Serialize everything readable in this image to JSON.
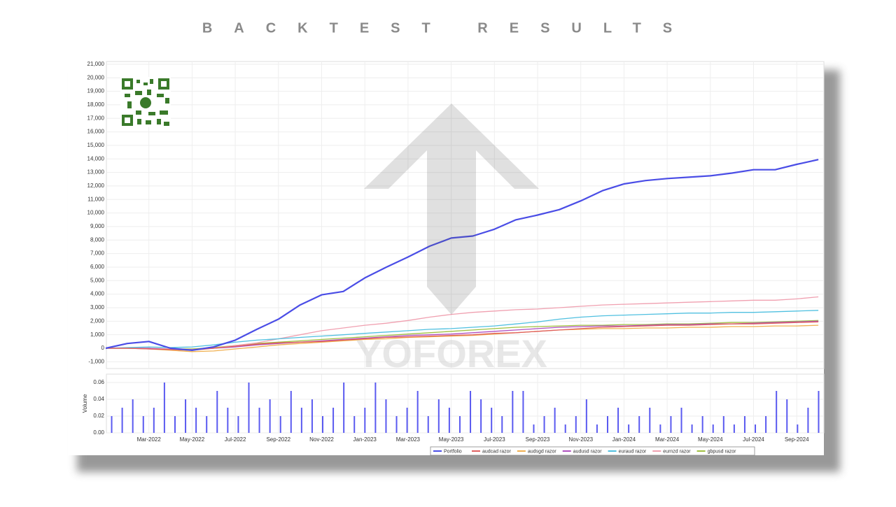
{
  "page_title": "BACKTEST RESULTS",
  "watermark": "YOFOREX",
  "chart_data": [
    {
      "type": "line",
      "categories": [
        null,
        null,
        "Mar-2022",
        null,
        "May-2022",
        null,
        "Jul-2022",
        null,
        "Sep-2022",
        null,
        "Nov-2022",
        null,
        "Jan-2023",
        null,
        "Mar-2023",
        null,
        "May-2023",
        null,
        "Jul-2023",
        null,
        "Sep-2023",
        null,
        "Nov-2023",
        null,
        "Jan-2024",
        null,
        "Mar-2024",
        null,
        "May-2024",
        null,
        "Jul-2024",
        null,
        "Sep-2024",
        null
      ],
      "series": [
        {
          "name": "Portfolio",
          "color": "#4a4de6",
          "values": [
            0,
            350,
            500,
            0,
            -150,
            100,
            600,
            1400,
            2150,
            3200,
            3950,
            4200,
            5200,
            6000,
            6750,
            7550,
            8150,
            8300,
            8800,
            9500,
            9850,
            10250,
            10900,
            11650,
            12150,
            12400,
            12550,
            12650,
            12750,
            12950,
            13200,
            13200,
            13600,
            13950
          ]
        },
        {
          "name": "audcad razor",
          "color": "#e06060",
          "values": [
            0,
            0,
            -50,
            -100,
            -150,
            0,
            150,
            300,
            400,
            450,
            500,
            600,
            700,
            800,
            850,
            900,
            950,
            1000,
            1100,
            1150,
            1250,
            1350,
            1450,
            1550,
            1600,
            1650,
            1700,
            1700,
            1750,
            1800,
            1800,
            1850,
            1900,
            1950
          ]
        },
        {
          "name": "audsgd razor",
          "color": "#f0b050",
          "values": [
            0,
            0,
            -50,
            -150,
            -250,
            -200,
            -50,
            100,
            250,
            350,
            450,
            550,
            650,
            700,
            800,
            850,
            900,
            950,
            1050,
            1150,
            1250,
            1350,
            1400,
            1450,
            1450,
            1500,
            1500,
            1550,
            1550,
            1600,
            1600,
            1650,
            1650,
            1700
          ]
        },
        {
          "name": "audusd razor",
          "color": "#b050c0",
          "values": [
            0,
            0,
            0,
            -100,
            -100,
            0,
            100,
            250,
            350,
            450,
            550,
            650,
            750,
            850,
            950,
            1000,
            1050,
            1150,
            1250,
            1350,
            1450,
            1550,
            1600,
            1650,
            1650,
            1700,
            1750,
            1750,
            1800,
            1800,
            1850,
            1900,
            1950,
            2000
          ]
        },
        {
          "name": "euraud razor",
          "color": "#50c0e0",
          "values": [
            0,
            50,
            100,
            50,
            100,
            250,
            450,
            600,
            700,
            800,
            900,
            1000,
            1100,
            1200,
            1300,
            1400,
            1450,
            1550,
            1650,
            1800,
            1950,
            2150,
            2300,
            2400,
            2450,
            2500,
            2550,
            2600,
            2600,
            2650,
            2650,
            2700,
            2750,
            2800
          ]
        },
        {
          "name": "eurnzd razor",
          "color": "#f0a0b0",
          "values": [
            0,
            0,
            0,
            -50,
            -100,
            0,
            200,
            400,
            700,
            1000,
            1300,
            1500,
            1700,
            1850,
            2050,
            2300,
            2500,
            2650,
            2750,
            2850,
            2900,
            3000,
            3100,
            3200,
            3250,
            3300,
            3350,
            3400,
            3450,
            3500,
            3550,
            3550,
            3650,
            3800
          ]
        },
        {
          "name": "gbpusd razor",
          "color": "#a0c040",
          "values": [
            0,
            0,
            0,
            -50,
            -50,
            50,
            200,
            350,
            450,
            550,
            650,
            750,
            850,
            950,
            1050,
            1150,
            1250,
            1350,
            1450,
            1550,
            1600,
            1650,
            1700,
            1700,
            1750,
            1750,
            1800,
            1800,
            1850,
            1900,
            1900,
            1950,
            2000,
            2050
          ]
        }
      ],
      "ylim": [
        -1500,
        21200
      ],
      "yticks": [
        {
          "value": -1000,
          "label": "-1,000"
        },
        0,
        {
          "value": 1000,
          "label": "1,000"
        },
        {
          "value": 2000,
          "label": "2,000"
        },
        {
          "value": 3000,
          "label": "3,000"
        },
        {
          "value": 4000,
          "label": "4,000"
        },
        {
          "value": 5000,
          "label": "5,000"
        },
        {
          "value": 6000,
          "label": "6,000"
        },
        {
          "value": 7000,
          "label": "7,000"
        },
        {
          "value": 8000,
          "label": "8,000"
        },
        {
          "value": 9000,
          "label": "9,000"
        },
        {
          "value": 10000,
          "label": "10,000"
        },
        {
          "value": 11000,
          "label": "11,000"
        },
        {
          "value": 12000,
          "label": "12,000"
        },
        {
          "value": 13000,
          "label": "13,000"
        },
        {
          "value": 14000,
          "label": "14,000"
        },
        {
          "value": 15000,
          "label": "15,000"
        },
        {
          "value": 16000,
          "label": "16,000"
        },
        {
          "value": 17000,
          "label": "17,000"
        },
        {
          "value": 18000,
          "label": "18,000"
        },
        {
          "value": 19000,
          "label": "19,000"
        },
        {
          "value": 20000,
          "label": "20,000"
        },
        {
          "value": 21000,
          "label": "21,000"
        }
      ],
      "grid": true
    },
    {
      "type": "bar",
      "ylabel": "Volume",
      "color": "#5a5af0",
      "values": [
        0.02,
        0.03,
        0.04,
        0.02,
        0.03,
        0.06,
        0.02,
        0.04,
        0.03,
        0.02,
        0.05,
        0.03,
        0.02,
        0.06,
        0.03,
        0.04,
        0.02,
        0.05,
        0.03,
        0.04,
        0.02,
        0.03,
        0.06,
        0.02,
        0.03,
        0.06,
        0.04,
        0.02,
        0.03,
        0.05,
        0.02,
        0.04,
        0.03,
        0.02,
        0.05,
        0.04,
        0.03,
        0.02,
        0.05,
        0.05,
        0.01,
        0.02,
        0.03,
        0.01,
        0.02,
        0.04,
        0.01,
        0.02,
        0.03,
        0.01,
        0.02,
        0.03,
        0.01,
        0.02,
        0.03,
        0.01,
        0.02,
        0.01,
        0.02,
        0.01,
        0.02,
        0.01,
        0.02,
        0.05,
        0.04,
        0.01,
        0.03,
        0.05
      ],
      "ylim": [
        0,
        0.07
      ],
      "yticks": [
        {
          "value": 0,
          "label": "0.00"
        },
        0.02,
        0.04,
        0.06
      ],
      "grid": true
    }
  ]
}
